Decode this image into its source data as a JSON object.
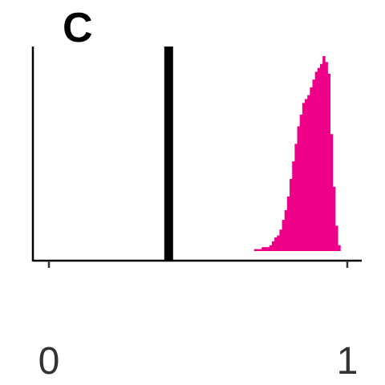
{
  "chart_data": {
    "type": "bar",
    "panel_label": "C",
    "title": "",
    "xlabel": "",
    "ylabel": "",
    "xlim": [
      -0.05,
      1.05
    ],
    "ylim": [
      0,
      1.05
    ],
    "x_ticks": [
      0,
      1
    ],
    "x_tick_labels": [
      "0",
      "1"
    ],
    "grid": false,
    "reference_line_x": 0.4,
    "histogram": {
      "color": "#ee0088",
      "bin_width": 0.0085,
      "bin_starts": [
        0.6876,
        0.6961,
        0.7046,
        0.7131,
        0.7216,
        0.7301,
        0.7386,
        0.7471,
        0.7556,
        0.7641,
        0.7726,
        0.7811,
        0.7896,
        0.7981,
        0.8066,
        0.8151,
        0.8236,
        0.8321,
        0.8406,
        0.8491,
        0.8576,
        0.8661,
        0.8746,
        0.8831,
        0.8916,
        0.9001,
        0.9086,
        0.9171,
        0.9256,
        0.9341,
        0.9426,
        0.9511,
        0.9596,
        0.9681
      ],
      "values": [
        0.01,
        0.01,
        0.01,
        0.02,
        0.02,
        0.02,
        0.03,
        0.05,
        0.07,
        0.08,
        0.11,
        0.16,
        0.21,
        0.28,
        0.37,
        0.46,
        0.55,
        0.64,
        0.7,
        0.76,
        0.78,
        0.8,
        0.84,
        0.88,
        0.92,
        0.94,
        0.96,
        1.0,
        0.97,
        0.91,
        0.6,
        0.33,
        0.13,
        0.03
      ]
    }
  }
}
